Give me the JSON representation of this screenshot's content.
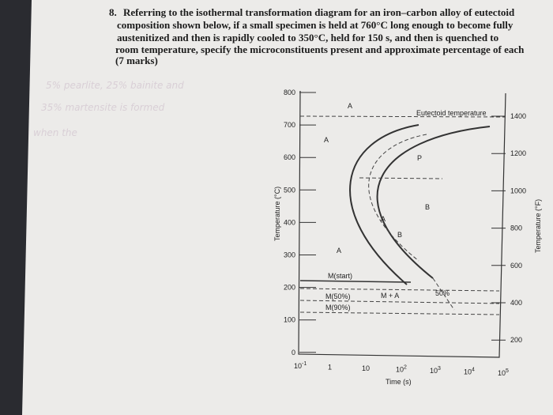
{
  "question": {
    "number": "8.",
    "lines": [
      "Referring to the isothermal transformation diagram for an iron–carbon alloy of eutectoid",
      "composition shown below, if a small specimen is held at 760°C long enough to become fully",
      "austenitized and then is rapidly cooled to 350°C, held for 150 s, and then is quenched to",
      "room temperature, specify the microconstituents present and approximate percentage of each"
    ],
    "marks": "(7 marks)"
  },
  "handwriting": [
    "5% pearlite, 25% bainite and",
    "35% martensite is formed",
    "when the"
  ],
  "diagram": {
    "y_label_left": "Temperature (°C)",
    "y_label_right": "Temperature (°F)",
    "x_label": "Time (s)",
    "celsius_ticks": [
      "800",
      "700",
      "600",
      "500",
      "400",
      "300",
      "200",
      "100",
      "0"
    ],
    "fahrenheit_ticks": [
      "1400",
      "1200",
      "1000",
      "800",
      "600",
      "400",
      "200"
    ],
    "time_ticks": [
      {
        "base": "10",
        "exp": "-1"
      },
      {
        "base": "1"
      },
      {
        "base": "10"
      },
      {
        "base": "10",
        "exp": "2"
      },
      {
        "base": "10",
        "exp": "3"
      },
      {
        "base": "10",
        "exp": "4"
      },
      {
        "base": "10",
        "exp": "5"
      }
    ],
    "eutectoid": "Eutectoid temperature",
    "regions": [
      "A",
      "A",
      "A",
      "P",
      "B",
      "A",
      "B",
      "M(start)",
      "M(50%)",
      "M(90%)",
      "M + A",
      "50%"
    ]
  }
}
